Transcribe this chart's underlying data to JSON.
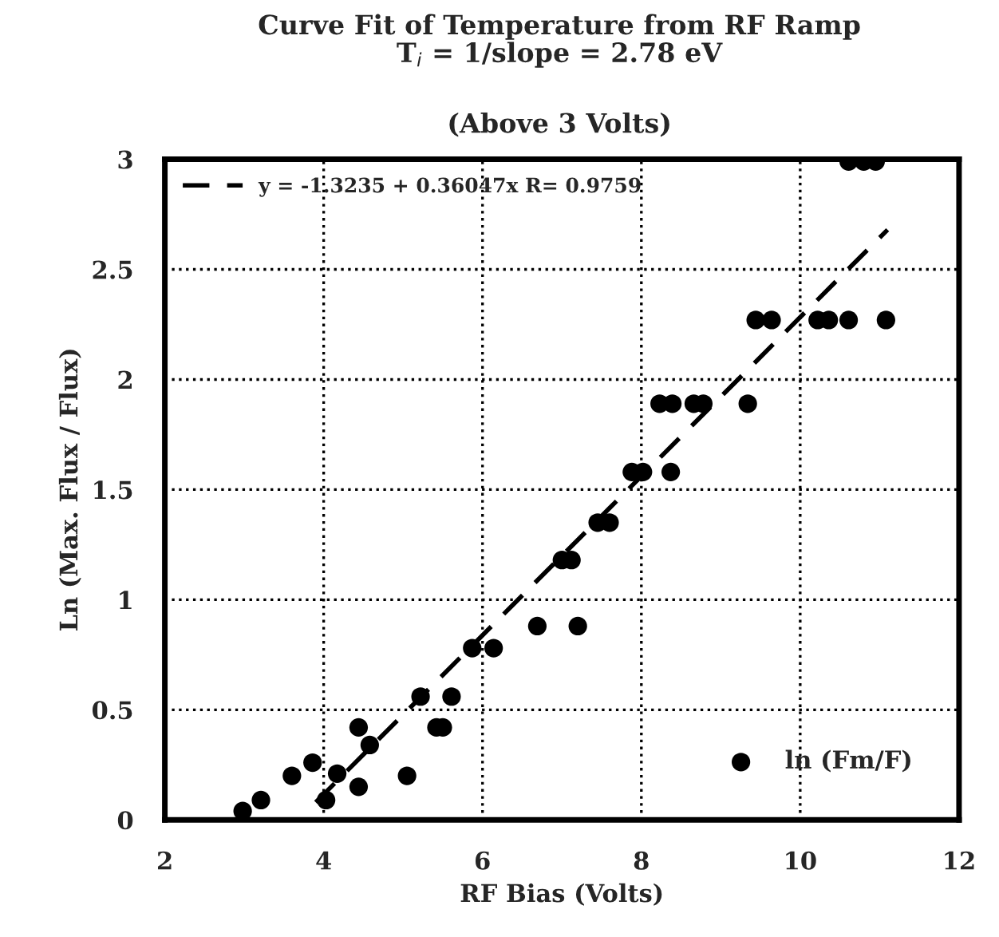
{
  "chart_data": {
    "type": "scatter",
    "title": "Curve Fit of Temperature from RF Ramp\nT$_{i}$ = 1/slope = 2.78 eV",
    "subtitle": "(Above 3 Volts)",
    "xlabel": "RF Bias (Volts)",
    "ylabel": "Ln (Max. Flux / Flux)",
    "xlim": [
      2,
      12
    ],
    "ylim": [
      0,
      3
    ],
    "xticks": [
      2,
      4,
      6,
      8,
      10,
      12
    ],
    "yticks": [
      0,
      0.5,
      1,
      1.5,
      2,
      2.5,
      3
    ],
    "grid": true,
    "legend": "top left",
    "series": [
      {
        "name": "ln (Fm/F)",
        "marker": "circle",
        "color": "#000000",
        "x": [
          2.98,
          3.21,
          3.6,
          3.86,
          4.03,
          4.17,
          4.44,
          4.44,
          4.58,
          5.05,
          5.22,
          5.42,
          5.5,
          5.61,
          5.87,
          6.14,
          6.69,
          7.2,
          7.0,
          7.12,
          7.45,
          7.6,
          7.88,
          8.02,
          8.37,
          8.23,
          8.39,
          8.66,
          8.78,
          9.34,
          9.44,
          9.64,
          10.22,
          10.36,
          10.61,
          11.08,
          10.61,
          10.8,
          10.95
        ],
        "values": [
          0.04,
          0.09,
          0.2,
          0.26,
          0.09,
          0.21,
          0.15,
          0.42,
          0.34,
          0.2,
          0.56,
          0.42,
          0.42,
          0.56,
          0.78,
          0.78,
          0.88,
          0.88,
          1.18,
          1.18,
          1.35,
          1.35,
          1.58,
          1.58,
          1.58,
          1.89,
          1.89,
          1.89,
          1.89,
          1.89,
          2.27,
          2.27,
          2.27,
          2.27,
          2.27,
          2.27,
          2.99,
          2.99,
          2.99
        ]
      },
      {
        "name": "y = -1.3235 + 0.36047x R= 0.9759",
        "type": "line",
        "line_style": "dashed",
        "marker": "none",
        "color": "#000000",
        "x": [
          3.9,
          11.1
        ],
        "values": [
          0.08,
          2.68
        ]
      }
    ]
  }
}
